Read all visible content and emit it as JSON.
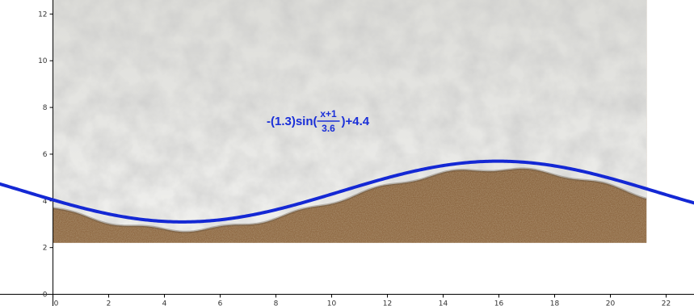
{
  "chart_data": {
    "type": "line",
    "function": {
      "amplitude": -1.3,
      "x_shift": 1,
      "period_divisor": 3.6,
      "offset": 4.4
    },
    "formula_label": {
      "prefix": "-(1.3)sin(",
      "numerator": "x+1",
      "denominator": "3.6",
      "suffix": ")+4.4"
    },
    "xlim": [
      -1.9,
      23
    ],
    "ylim": [
      -0.5,
      12.6
    ],
    "x_ticks": [
      0,
      2,
      4,
      6,
      8,
      10,
      12,
      14,
      16,
      18,
      20,
      22
    ],
    "y_ticks": [
      0,
      2,
      4,
      6,
      8,
      10,
      12
    ],
    "x_tick_labels": [
      "0",
      "2",
      "4",
      "6",
      "8",
      "10",
      "12",
      "14",
      "16",
      "18",
      "20",
      "22"
    ],
    "y_tick_labels": [
      "0",
      "2",
      "4",
      "6",
      "8",
      "10",
      "12"
    ],
    "grid": false,
    "background_image": "beach-photo-foam-over-sand",
    "image_extent": {
      "x": [
        0,
        21.3
      ],
      "y": [
        2.2,
        13
      ]
    },
    "colors": {
      "curve": "#1428d4",
      "formula": "#1a2fd8",
      "axis": "#000000",
      "sand": "#8a6540",
      "foam": "#e3e3e0"
    }
  }
}
